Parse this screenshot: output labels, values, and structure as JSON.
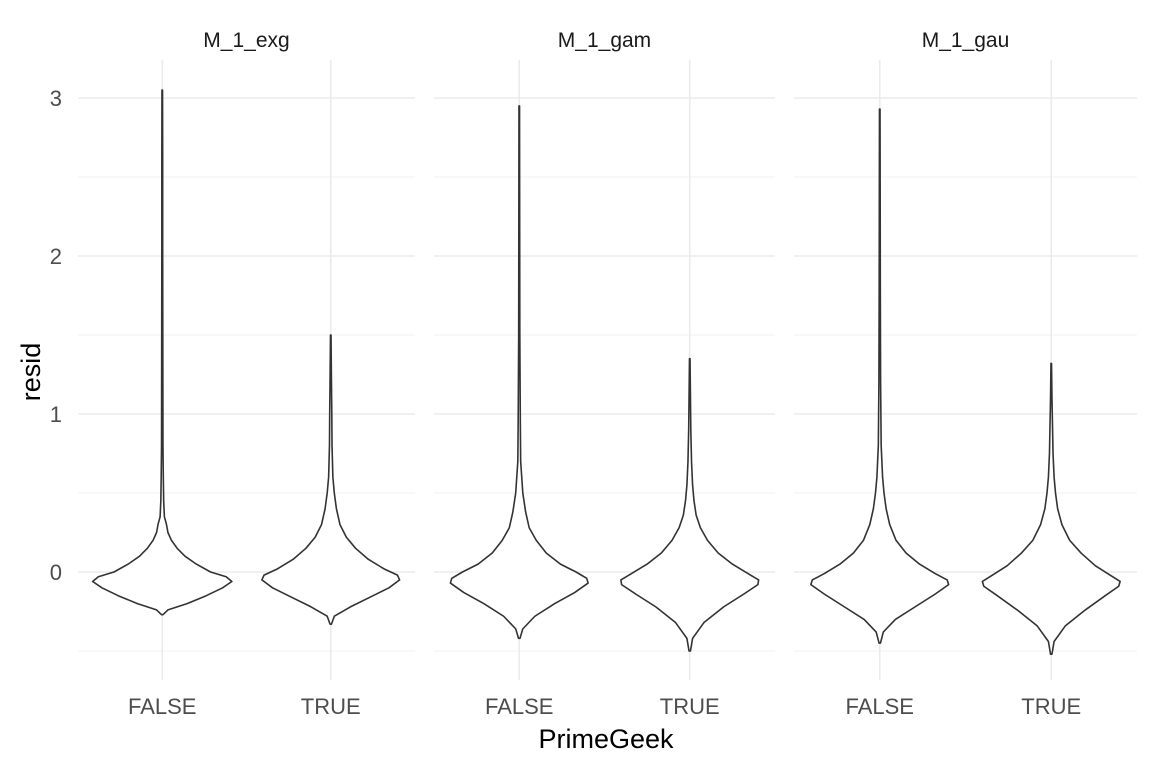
{
  "chart_data": {
    "type": "violin",
    "xlabel": "PrimeGeek",
    "ylabel": "resid",
    "categories": [
      "FALSE",
      "TRUE"
    ],
    "y_ticks": [
      0,
      1,
      2,
      3
    ],
    "y_tick_labels": [
      "0",
      "1",
      "2",
      "3"
    ],
    "ylim": [
      -0.68,
      3.25
    ],
    "grid": true,
    "legend": "none",
    "panels": [
      {
        "title": "M_1_exg",
        "violins": [
          {
            "category": "FALSE",
            "min": -0.27,
            "max": 3.05,
            "density": [
              [
                -0.27,
                0.01
              ],
              [
                -0.24,
                0.08
              ],
              [
                -0.2,
                0.35
              ],
              [
                -0.15,
                0.62
              ],
              [
                -0.1,
                0.85
              ],
              [
                -0.06,
                0.98
              ],
              [
                -0.03,
                0.9
              ],
              [
                0,
                0.68
              ],
              [
                0.05,
                0.48
              ],
              [
                0.1,
                0.32
              ],
              [
                0.15,
                0.21
              ],
              [
                0.2,
                0.13
              ],
              [
                0.25,
                0.08
              ],
              [
                0.3,
                0.06
              ],
              [
                0.35,
                0.03
              ],
              [
                0.45,
                0.02
              ],
              [
                0.6,
                0.015
              ],
              [
                0.8,
                0.01
              ],
              [
                1.4,
                0.008
              ],
              [
                2.0,
                0.006
              ],
              [
                2.6,
                0.006
              ],
              [
                3.05,
                0.004
              ]
            ]
          },
          {
            "category": "TRUE",
            "min": -0.33,
            "max": 1.5,
            "density": [
              [
                -0.33,
                0.01
              ],
              [
                -0.28,
                0.05
              ],
              [
                -0.22,
                0.28
              ],
              [
                -0.16,
                0.55
              ],
              [
                -0.1,
                0.82
              ],
              [
                -0.05,
                0.97
              ],
              [
                -0.02,
                0.94
              ],
              [
                0.02,
                0.75
              ],
              [
                0.08,
                0.53
              ],
              [
                0.15,
                0.35
              ],
              [
                0.22,
                0.22
              ],
              [
                0.3,
                0.13
              ],
              [
                0.4,
                0.08
              ],
              [
                0.5,
                0.05
              ],
              [
                0.6,
                0.03
              ],
              [
                0.8,
                0.018
              ],
              [
                1.0,
                0.015
              ],
              [
                1.2,
                0.01
              ],
              [
                1.5,
                0.004
              ]
            ]
          }
        ]
      },
      {
        "title": "M_1_gam",
        "violins": [
          {
            "category": "FALSE",
            "min": -0.42,
            "max": 2.95,
            "density": [
              [
                -0.42,
                0.01
              ],
              [
                -0.36,
                0.05
              ],
              [
                -0.28,
                0.22
              ],
              [
                -0.2,
                0.5
              ],
              [
                -0.13,
                0.78
              ],
              [
                -0.07,
                0.97
              ],
              [
                -0.04,
                0.95
              ],
              [
                0,
                0.8
              ],
              [
                0.05,
                0.58
              ],
              [
                0.12,
                0.38
              ],
              [
                0.2,
                0.24
              ],
              [
                0.28,
                0.14
              ],
              [
                0.38,
                0.09
              ],
              [
                0.5,
                0.05
              ],
              [
                0.6,
                0.035
              ],
              [
                0.7,
                0.02
              ],
              [
                0.95,
                0.015
              ],
              [
                1.5,
                0.008
              ],
              [
                2.2,
                0.006
              ],
              [
                2.95,
                0.004
              ]
            ]
          },
          {
            "category": "TRUE",
            "min": -0.5,
            "max": 1.35,
            "density": [
              [
                -0.5,
                0.01
              ],
              [
                -0.42,
                0.04
              ],
              [
                -0.32,
                0.2
              ],
              [
                -0.22,
                0.48
              ],
              [
                -0.14,
                0.76
              ],
              [
                -0.08,
                0.96
              ],
              [
                -0.05,
                0.97
              ],
              [
                -0.01,
                0.82
              ],
              [
                0.05,
                0.6
              ],
              [
                0.12,
                0.4
              ],
              [
                0.2,
                0.25
              ],
              [
                0.28,
                0.15
              ],
              [
                0.36,
                0.09
              ],
              [
                0.45,
                0.06
              ],
              [
                0.55,
                0.04
              ],
              [
                0.7,
                0.025
              ],
              [
                0.9,
                0.015
              ],
              [
                1.1,
                0.01
              ],
              [
                1.35,
                0.004
              ]
            ]
          }
        ]
      },
      {
        "title": "M_1_gau",
        "violins": [
          {
            "category": "FALSE",
            "min": -0.45,
            "max": 2.93,
            "density": [
              [
                -0.45,
                0.01
              ],
              [
                -0.38,
                0.05
              ],
              [
                -0.3,
                0.22
              ],
              [
                -0.22,
                0.5
              ],
              [
                -0.14,
                0.78
              ],
              [
                -0.08,
                0.97
              ],
              [
                -0.05,
                0.95
              ],
              [
                -0.01,
                0.78
              ],
              [
                0.05,
                0.56
              ],
              [
                0.12,
                0.37
              ],
              [
                0.2,
                0.23
              ],
              [
                0.3,
                0.14
              ],
              [
                0.4,
                0.09
              ],
              [
                0.5,
                0.06
              ],
              [
                0.6,
                0.04
              ],
              [
                0.8,
                0.02
              ],
              [
                1.2,
                0.012
              ],
              [
                1.8,
                0.008
              ],
              [
                2.4,
                0.006
              ],
              [
                2.93,
                0.004
              ]
            ]
          },
          {
            "category": "TRUE",
            "min": -0.52,
            "max": 1.32,
            "density": [
              [
                -0.52,
                0.01
              ],
              [
                -0.44,
                0.04
              ],
              [
                -0.34,
                0.2
              ],
              [
                -0.24,
                0.48
              ],
              [
                -0.15,
                0.76
              ],
              [
                -0.09,
                0.95
              ],
              [
                -0.06,
                0.97
              ],
              [
                -0.02,
                0.83
              ],
              [
                0.04,
                0.62
              ],
              [
                0.12,
                0.42
              ],
              [
                0.2,
                0.26
              ],
              [
                0.3,
                0.15
              ],
              [
                0.4,
                0.09
              ],
              [
                0.5,
                0.06
              ],
              [
                0.6,
                0.04
              ],
              [
                0.75,
                0.025
              ],
              [
                0.92,
                0.018
              ],
              [
                1.1,
                0.01
              ],
              [
                1.32,
                0.004
              ]
            ]
          }
        ]
      }
    ]
  }
}
